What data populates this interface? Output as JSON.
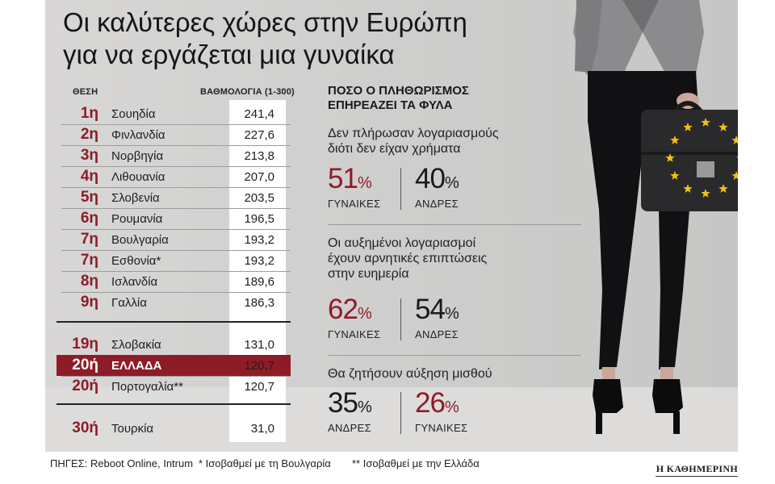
{
  "title": [
    "Οι καλύτερες χώρες στην Ευρώπη",
    "για να εργάζεται μια γυναίκα"
  ],
  "table": {
    "rank_header": "ΘΕΣΗ",
    "score_header": "ΒΑΘΜΟΛΟΓΙΑ (1-300)",
    "rows": [
      {
        "rank": "1η",
        "country": "Σουηδία",
        "score": "241,4"
      },
      {
        "rank": "2η",
        "country": "Φινλανδία",
        "score": "227,6"
      },
      {
        "rank": "3η",
        "country": "Νορβηγία",
        "score": "213,8"
      },
      {
        "rank": "4η",
        "country": "Λιθουανία",
        "score": "207,0"
      },
      {
        "rank": "5η",
        "country": "Σλοβενία",
        "score": "203,5"
      },
      {
        "rank": "6η",
        "country": "Ρουμανία",
        "score": "196,5"
      },
      {
        "rank": "7η",
        "country": "Βουλγαρία",
        "score": "193,2"
      },
      {
        "rank": "7η",
        "country": "Εσθονία*",
        "score": "193,2"
      },
      {
        "rank": "8η",
        "country": "Ισλανδία",
        "score": "189,6"
      },
      {
        "rank": "9η",
        "country": "Γαλλία",
        "score": "186,3"
      },
      {
        "rank": "19η",
        "country": "Σλοβακία",
        "score": "131,0"
      },
      {
        "rank": "20ή",
        "country": "ΕΛΛΑΔΑ",
        "score": "120,7"
      },
      {
        "rank": "20ή",
        "country": "Πορτογαλία**",
        "score": "120,7"
      },
      {
        "rank": "30ή",
        "country": "Τουρκία",
        "score": "31,0"
      }
    ]
  },
  "chart_data": {
    "type": "table",
    "title": "Οι καλύτερες χώρες στην Ευρώπη για να εργάζεται μια γυναίκα",
    "columns": [
      "ΘΕΣΗ",
      "ΒΑΘΜΟΛΟΓΙΑ (1-300)"
    ],
    "categories": [
      "Σουηδία",
      "Φινλανδία",
      "Νορβηγία",
      "Λιθουανία",
      "Σλοβενία",
      "Ρουμανία",
      "Βουλγαρία",
      "Εσθονία*",
      "Ισλανδία",
      "Γαλλία",
      "Σλοβακία",
      "ΕΛΛΑΔΑ",
      "Πορτογαλία**",
      "Τουρκία"
    ],
    "ranks": [
      1,
      2,
      3,
      4,
      5,
      6,
      7,
      7,
      8,
      9,
      19,
      20,
      20,
      30
    ],
    "values": [
      241.4,
      227.6,
      213.8,
      207.0,
      203.5,
      196.5,
      193.2,
      193.2,
      189.6,
      186.3,
      131.0,
      120.7,
      120.7,
      31.0
    ],
    "highlight": "ΕΛΛΑΔΑ",
    "highlight_color": "#8e1c26",
    "inflation_section": {
      "title": "ΠΟΣΟ Ο ΠΛΗΘΩΡΙΣΜΟΣ ΕΠΗΡΕΑΖΕΙ ΤΑ ΦΥΛΑ",
      "items": [
        {
          "question": "Δεν πλήρωσαν λογαριασμούς διότι δεν είχαν χρήματα",
          "first": {
            "label": "ΓΥΝΑΙΚΕΣ",
            "value": 51
          },
          "second": {
            "label": "ΑΝΔΡΕΣ",
            "value": 40
          }
        },
        {
          "question": "Οι αυξημένοι λογαριασμοί έχουν αρνητικές επιπτώσεις στην ευημερία",
          "first": {
            "label": "ΓΥΝΑΙΚΕΣ",
            "value": 62
          },
          "second": {
            "label": "ΑΝΔΡΕΣ",
            "value": 54
          }
        },
        {
          "question": "Θα ζητήσουν αύξηση μισθού",
          "first": {
            "label": "ΑΝΔΡΕΣ",
            "value": 35
          },
          "second": {
            "label": "ΓΥΝΑΙΚΕΣ",
            "value": 26
          }
        }
      ]
    }
  },
  "inflation": {
    "title_line1": "ΠΟΣΟ Ο ΠΛΗΘΩΡΙΣΜΟΣ",
    "title_line2": "ΕΠΗΡΕΑΖΕΙ ΤΑ ΦΥΛΑ",
    "q1": [
      "Δεν πλήρωσαν λογαριασμούς",
      "διότι δεν είχαν χρήματα"
    ],
    "s1a": {
      "num": "51",
      "pct": "%",
      "label": "ΓΥΝΑΙΚΕΣ"
    },
    "s1b": {
      "num": "40",
      "pct": "%",
      "label": "ΑΝΔΡΕΣ"
    },
    "q2": [
      "Οι αυξημένοι λογαριασμοί",
      "έχουν αρνητικές επιπτώσεις",
      "στην ευημερία"
    ],
    "s2a": {
      "num": "62",
      "pct": "%",
      "label": "ΓΥΝΑΙΚΕΣ"
    },
    "s2b": {
      "num": "54",
      "pct": "%",
      "label": "ΑΝΔΡΕΣ"
    },
    "q3": [
      "Θα ζητήσουν αύξηση μισθού"
    ],
    "s3a": {
      "num": "35",
      "pct": "%",
      "label": "ΑΝΔΡΕΣ"
    },
    "s3b": {
      "num": "26",
      "pct": "%",
      "label": "ΓΥΝΑΙΚΕΣ"
    }
  },
  "footer": {
    "sources": "ΠΗΓΕΣ: Reboot Online, Intrum",
    "note1": "* Ισοβαθμεί με τη Βουλγαρία",
    "note2": "** Ισοβαθμεί με την Ελλάδα",
    "brand": "Η ΚΑΘΗΜΕΡΙΝΗ"
  },
  "colors": {
    "accent": "#8e1c26",
    "eu_blue": "#1f3a8a",
    "eu_star": "#f4c20d"
  },
  "icons": [
    "eu-stars-briefcase-illustration"
  ]
}
